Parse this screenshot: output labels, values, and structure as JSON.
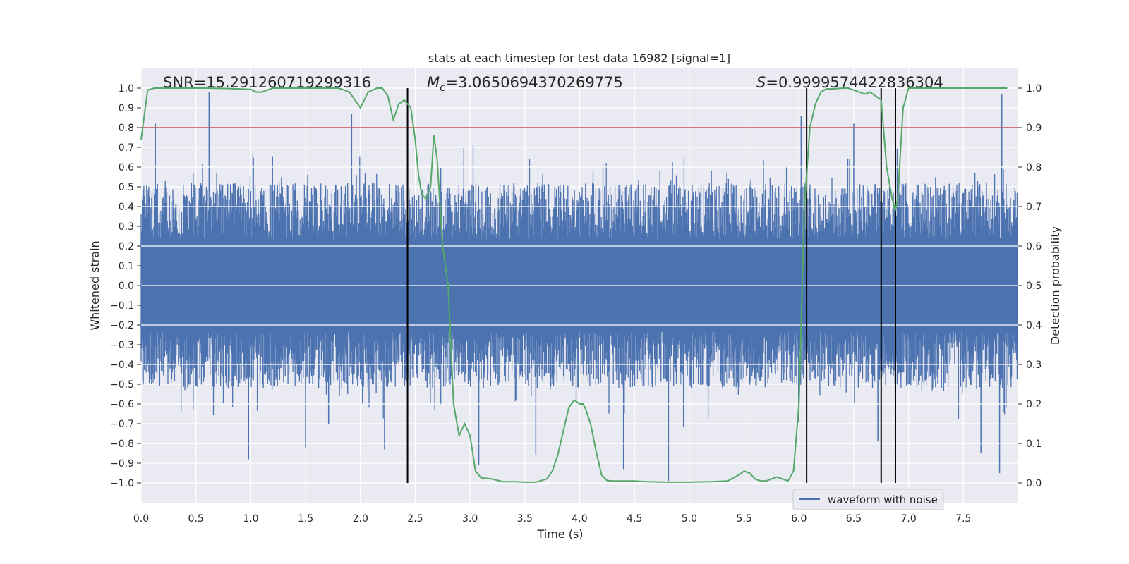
{
  "chart_data": {
    "type": "line",
    "title": "stats at each timestep for test data 16982 [signal=1]",
    "xlabel": "Time (s)",
    "ylabel": "Whitened strain",
    "y2label": "Detection probability",
    "xlim": [
      0.0,
      8.0
    ],
    "ylim": [
      -1.1,
      1.1
    ],
    "y2lim": [
      -0.05,
      1.05
    ],
    "x_ticks": [
      0.0,
      0.5,
      1.0,
      1.5,
      2.0,
      2.5,
      3.0,
      3.5,
      4.0,
      4.5,
      5.0,
      5.5,
      6.0,
      6.5,
      7.0,
      7.5
    ],
    "x_tick_labels": [
      "0.0",
      "0.5",
      "1.0",
      "1.5",
      "2.0",
      "2.5",
      "3.0",
      "3.5",
      "4.0",
      "4.5",
      "5.0",
      "5.5",
      "6.0",
      "6.5",
      "7.0",
      "7.5"
    ],
    "y_ticks": [
      1.0,
      0.9,
      0.8,
      0.7,
      0.6,
      0.5,
      0.4,
      0.3,
      0.2,
      0.1,
      0.0,
      -0.1,
      -0.2,
      -0.3,
      -0.4,
      -0.5,
      -0.6,
      -0.7,
      -0.8,
      -0.9,
      -1.0
    ],
    "y_tick_labels": [
      "1.0",
      "0.9",
      "0.8",
      "0.7",
      "0.6",
      "0.5",
      "0.4",
      "0.3",
      "0.2",
      "0.1",
      "0.0",
      "−0.1",
      "−0.2",
      "−0.3",
      "−0.4",
      "−0.5",
      "−0.6",
      "−0.7",
      "−0.8",
      "−0.9",
      "−1.0"
    ],
    "y2_ticks": [
      1.0,
      0.9,
      0.8,
      0.7,
      0.6,
      0.5,
      0.4,
      0.3,
      0.2,
      0.1,
      0.0
    ],
    "y2_tick_labels": [
      "1.0",
      "0.9",
      "0.8",
      "0.7",
      "0.6",
      "0.5",
      "0.4",
      "0.3",
      "0.2",
      "0.1",
      "0.0"
    ],
    "annotations": {
      "snr": "SNR=15.291260719299316",
      "mc_symbol": "M",
      "mc_sub": "c",
      "mc_value": "=3.0650694370269775",
      "s_symbol": "S",
      "s_value": "=0.9999574422836304"
    },
    "legend": {
      "label": "waveform with noise",
      "location": "lower-right"
    },
    "threshold": {
      "value": 0.9,
      "axis": "y2",
      "color": "#c44e52"
    },
    "vlines": [
      2.43,
      6.07,
      6.75,
      6.88
    ],
    "waveform": {
      "name": "waveform with noise",
      "color": "#4c72b0",
      "sample_count": 1600,
      "envelope_upper": 0.52,
      "envelope_lower": -0.52,
      "peaks": [
        {
          "t": 0.62,
          "v": 0.98
        },
        {
          "t": 1.92,
          "v": 0.87
        },
        {
          "t": 6.02,
          "v": 0.86
        },
        {
          "t": 7.85,
          "v": 0.97
        },
        {
          "t": 7.83,
          "v": -0.95
        },
        {
          "t": 4.81,
          "v": -0.99
        },
        {
          "t": 3.08,
          "v": -0.91
        },
        {
          "t": 4.4,
          "v": -0.93
        },
        {
          "t": 0.13,
          "v": 0.82
        },
        {
          "t": 2.22,
          "v": -0.83
        },
        {
          "t": 1.5,
          "v": -0.82
        },
        {
          "t": 0.98,
          "v": -0.88
        },
        {
          "t": 6.72,
          "v": -0.79
        },
        {
          "t": 7.66,
          "v": -0.85
        },
        {
          "t": 1.71,
          "v": -0.7
        },
        {
          "t": 3.6,
          "v": -0.86
        },
        {
          "t": 6.5,
          "v": 0.82
        }
      ]
    },
    "series": [
      {
        "name": "detection probability",
        "axis": "y2",
        "color": "#55a868",
        "x": [
          0.0,
          0.06,
          0.12,
          0.2,
          0.4,
          0.6,
          0.8,
          1.0,
          1.05,
          1.1,
          1.15,
          1.2,
          1.4,
          1.6,
          1.8,
          1.9,
          1.95,
          2.0,
          2.07,
          2.15,
          2.2,
          2.25,
          2.3,
          2.35,
          2.4,
          2.46,
          2.5,
          2.53,
          2.56,
          2.6,
          2.64,
          2.67,
          2.7,
          2.75,
          2.8,
          2.85,
          2.9,
          2.95,
          3.0,
          3.05,
          3.1,
          3.2,
          3.3,
          3.4,
          3.5,
          3.6,
          3.7,
          3.75,
          3.8,
          3.85,
          3.9,
          3.95,
          4.0,
          4.03,
          4.05,
          4.1,
          4.15,
          4.2,
          4.25,
          4.3,
          4.4,
          4.5,
          4.6,
          4.8,
          5.0,
          5.2,
          5.35,
          5.45,
          5.5,
          5.55,
          5.6,
          5.65,
          5.7,
          5.75,
          5.8,
          5.85,
          5.9,
          5.95,
          6.0,
          6.05,
          6.1,
          6.15,
          6.2,
          6.25,
          6.3,
          6.4,
          6.45,
          6.5,
          6.55,
          6.6,
          6.65,
          6.7,
          6.75,
          6.8,
          6.85,
          6.88,
          6.9,
          6.95,
          7.0,
          7.1,
          7.3,
          7.5,
          7.7,
          7.9
        ],
        "y": [
          0.87,
          0.995,
          1.0,
          1.0,
          1.0,
          1.0,
          0.999,
          0.997,
          0.99,
          0.99,
          0.995,
          1.0,
          1.0,
          1.0,
          1.0,
          0.99,
          0.97,
          0.95,
          0.99,
          1.0,
          1.0,
          0.98,
          0.92,
          0.96,
          0.97,
          0.95,
          0.87,
          0.78,
          0.73,
          0.72,
          0.75,
          0.88,
          0.82,
          0.6,
          0.5,
          0.2,
          0.12,
          0.15,
          0.12,
          0.03,
          0.013,
          0.01,
          0.003,
          0.003,
          0.002,
          0.002,
          0.01,
          0.03,
          0.07,
          0.13,
          0.19,
          0.21,
          0.2,
          0.2,
          0.19,
          0.15,
          0.08,
          0.02,
          0.006,
          0.005,
          0.005,
          0.005,
          0.003,
          0.002,
          0.002,
          0.003,
          0.005,
          0.02,
          0.03,
          0.025,
          0.01,
          0.005,
          0.005,
          0.01,
          0.015,
          0.01,
          0.005,
          0.03,
          0.2,
          0.7,
          0.9,
          0.96,
          0.99,
          0.998,
          0.998,
          1.0,
          1.0,
          0.995,
          0.99,
          0.985,
          0.99,
          0.98,
          0.97,
          0.8,
          0.72,
          0.69,
          0.72,
          0.95,
          1.0,
          1.0,
          1.0,
          1.0,
          1.0,
          1.0
        ]
      }
    ]
  }
}
